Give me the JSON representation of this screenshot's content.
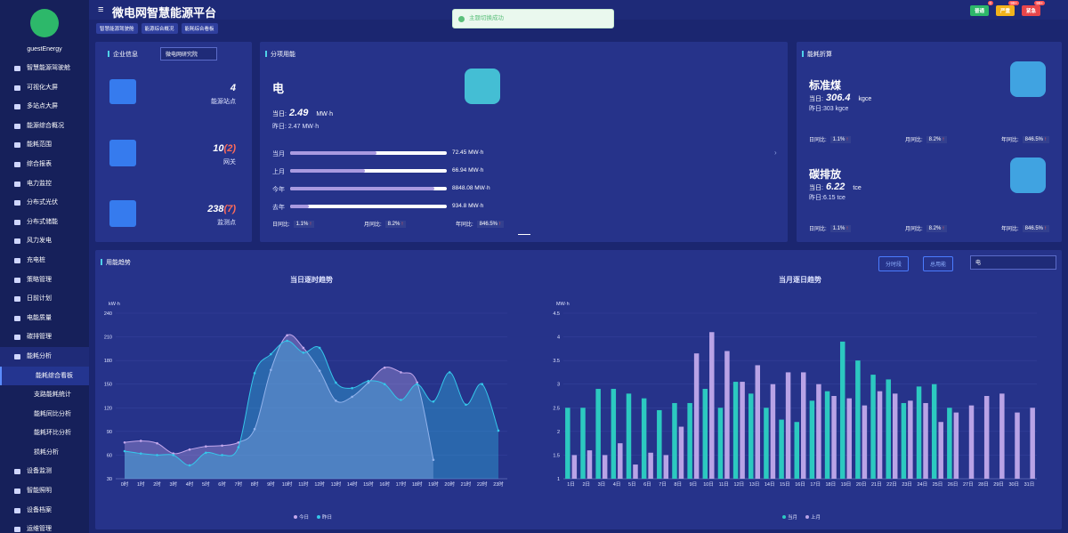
{
  "sidebar": {
    "user": "guestEnergy",
    "menu": [
      "智慧能源驾驶舱",
      "可视化大屏",
      "多站点大屏",
      "能源综合概况",
      "能耗范围",
      "综合报表",
      "电力监控",
      "分布式光伏",
      "分布式储能",
      "风力发电",
      "充电桩",
      "策略管理",
      "日前计划",
      "电能质量",
      "碳排管理",
      "能耗分析"
    ],
    "submenu": [
      "能耗综合看板",
      "支路能耗统计",
      "能耗同比分析",
      "能耗环比分析",
      "损耗分析"
    ],
    "menu_more": [
      "设备监测",
      "智能照明",
      "设备档案",
      "运维管理"
    ]
  },
  "header": {
    "title": "微电网智慧能源平台",
    "tabs": [
      "智慧能源驾驶舱",
      "能源综合概况",
      "能耗综合看板"
    ],
    "toast": "主题切换成功",
    "badges": [
      {
        "label": "普通",
        "count": "0"
      },
      {
        "label": "严重",
        "count": "99+"
      },
      {
        "label": "紧急",
        "count": "99+"
      }
    ]
  },
  "company": {
    "title": "企业信息",
    "select": "微电网研究院",
    "stats": [
      {
        "value": "4",
        "label": "能源站点"
      },
      {
        "value": "10",
        "extra": "(2)",
        "label": "网关"
      },
      {
        "value": "238",
        "extra": "(7)",
        "label": "监测点"
      }
    ]
  },
  "energy": {
    "title": "分项用能",
    "name": "电",
    "today_label": "当日:",
    "today": "2.49",
    "today_unit": "MW·h",
    "yesterday": "昨日: 2.47 MW·h",
    "rows": [
      {
        "label": "当月",
        "value": "72.45 MW·h"
      },
      {
        "label": "上月",
        "value": "66.94 MW·h"
      },
      {
        "label": "今年",
        "value": "8848.08 MW·h"
      },
      {
        "label": "去年",
        "value": "934.8 MW·h"
      }
    ],
    "ratios": [
      {
        "label": "日同比:",
        "value": "1.1%"
      },
      {
        "label": "月同比:",
        "value": "8.2%"
      },
      {
        "label": "年同比:",
        "value": "846.5%"
      }
    ]
  },
  "conversion": {
    "title": "能耗折算",
    "items": [
      {
        "name": "标准煤",
        "today_label": "当日:",
        "today": "306.4",
        "unit": "kgce",
        "yesterday": "昨日:303 kgce",
        "ratios": [
          {
            "label": "日同比:",
            "value": "1.1%"
          },
          {
            "label": "月同比:",
            "value": "8.2%"
          },
          {
            "label": "年同比:",
            "value": "846.5%"
          }
        ]
      },
      {
        "name": "碳排放",
        "today_label": "当日:",
        "today": "6.22",
        "unit": "tce",
        "yesterday": "昨日:6.15 tce",
        "ratios": [
          {
            "label": "日同比:",
            "value": "1.1%"
          },
          {
            "label": "月同比:",
            "value": "8.2%"
          },
          {
            "label": "年同比:",
            "value": "846.5%"
          }
        ]
      }
    ]
  },
  "trend": {
    "title": "用能趋势",
    "buttons": [
      "分时段",
      "总用能"
    ],
    "select": "电"
  },
  "chart_data": [
    {
      "type": "line",
      "title": "当日逐时趋势",
      "y_label": "kW·h",
      "categories": [
        "0时",
        "1时",
        "2时",
        "3时",
        "4时",
        "5时",
        "6时",
        "7时",
        "8时",
        "9时",
        "10时",
        "11时",
        "12时",
        "13时",
        "14时",
        "15时",
        "16时",
        "17时",
        "18时",
        "19时",
        "20时",
        "21时",
        "22时",
        "23时"
      ],
      "series": [
        {
          "name": "今日",
          "color": "#c4a8ec",
          "values": [
            76,
            78,
            75,
            62,
            67,
            71,
            72,
            76,
            93,
            168,
            212,
            196,
            167,
            129,
            134,
            152,
            171,
            165,
            152,
            54,
            null,
            null,
            null,
            null
          ]
        },
        {
          "name": "昨日",
          "color": "#35c6ea",
          "values": [
            65,
            62,
            60,
            60,
            47,
            63,
            60,
            70,
            164,
            188,
            205,
            190,
            196,
            152,
            145,
            154,
            150,
            130,
            150,
            128,
            165,
            124,
            150,
            91
          ]
        }
      ],
      "ylim": [
        30,
        240
      ],
      "yticks": [
        30,
        60,
        90,
        120,
        150,
        180,
        210,
        240
      ],
      "grid": true
    },
    {
      "type": "bar",
      "title": "当月逐日趋势",
      "y_label": "MW·h",
      "categories": [
        "1日",
        "2日",
        "3日",
        "4日",
        "5日",
        "6日",
        "7日",
        "8日",
        "9日",
        "10日",
        "11日",
        "12日",
        "13日",
        "14日",
        "15日",
        "16日",
        "17日",
        "18日",
        "19日",
        "20日",
        "21日",
        "22日",
        "23日",
        "24日",
        "25日",
        "26日",
        "27日",
        "28日",
        "29日",
        "30日",
        "31日"
      ],
      "series": [
        {
          "name": "当月",
          "color": "#2cc9c0",
          "values": [
            2.5,
            2.5,
            2.9,
            2.9,
            2.8,
            2.7,
            2.45,
            2.6,
            2.6,
            2.9,
            2.5,
            3.05,
            2.8,
            2.5,
            2.25,
            2.2,
            2.65,
            2.85,
            3.9,
            3.5,
            3.2,
            3.1,
            2.6,
            2.95,
            3.0,
            2.5,
            null,
            null,
            null,
            null,
            null
          ]
        },
        {
          "name": "上月",
          "color": "#b9a3e6",
          "values": [
            1.5,
            1.6,
            1.5,
            1.75,
            1.3,
            1.55,
            1.5,
            2.1,
            3.65,
            4.1,
            3.7,
            3.05,
            3.4,
            3.0,
            3.25,
            3.25,
            3.0,
            2.75,
            2.7,
            2.55,
            2.85,
            2.8,
            2.65,
            2.6,
            2.2,
            2.4,
            2.55,
            2.75,
            2.8,
            2.4,
            2.5
          ]
        }
      ],
      "ylim": [
        1,
        4.5
      ],
      "yticks": [
        1,
        1.5,
        2,
        2.5,
        3,
        3.5,
        4,
        4.5
      ],
      "grid": true
    }
  ]
}
